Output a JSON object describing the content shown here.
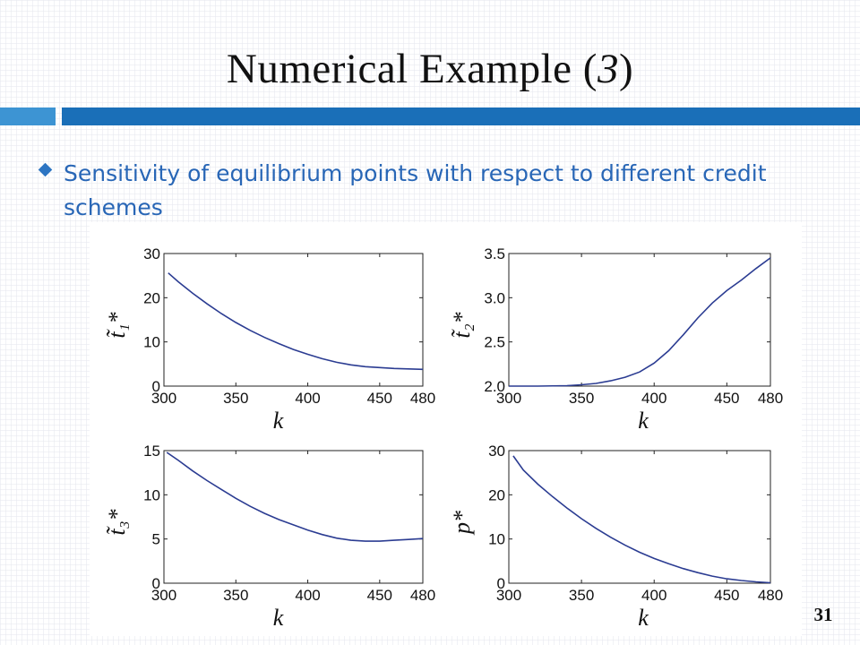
{
  "slide": {
    "title_main": "Numerical Example (",
    "title_num": "3",
    "title_close": ")",
    "bullet": "Sensitivity of equilibrium points with respect to different credit schemes",
    "page_number": "31"
  },
  "colors": {
    "accent_light": "#3d94d3",
    "accent_dark": "#1a6fb8",
    "bullet_text": "#2866b6",
    "line": "#2b3c92"
  },
  "chart_data": [
    {
      "type": "line",
      "xlabel": "k",
      "ylabel": "t̃₁*",
      "xlim": [
        300,
        480
      ],
      "xticks": [
        300,
        350,
        400,
        450,
        480
      ],
      "ylim": [
        0,
        30
      ],
      "yticks": [
        0,
        10,
        20,
        30
      ],
      "ytick_labels": [
        "0",
        "10",
        "20",
        "30"
      ],
      "x": [
        303,
        310,
        320,
        330,
        340,
        350,
        360,
        370,
        380,
        390,
        400,
        410,
        420,
        430,
        440,
        450,
        460,
        470,
        480
      ],
      "y": [
        25.6,
        23.6,
        21.0,
        18.6,
        16.4,
        14.4,
        12.6,
        11.0,
        9.6,
        8.3,
        7.2,
        6.2,
        5.4,
        4.8,
        4.4,
        4.2,
        4.0,
        3.9,
        3.8
      ]
    },
    {
      "type": "line",
      "xlabel": "k",
      "ylabel": "t̃₂*",
      "xlim": [
        300,
        480
      ],
      "xticks": [
        300,
        350,
        400,
        450,
        480
      ],
      "ylim": [
        2.0,
        3.5
      ],
      "yticks": [
        2.0,
        2.5,
        3.0,
        3.5
      ],
      "ytick_labels": [
        "2.0",
        "2.5",
        "3.0",
        "3.5"
      ],
      "x": [
        300,
        320,
        340,
        350,
        360,
        370,
        380,
        390,
        400,
        410,
        420,
        430,
        440,
        450,
        460,
        470,
        480
      ],
      "y": [
        2.0,
        2.0,
        2.005,
        2.015,
        2.03,
        2.06,
        2.1,
        2.16,
        2.26,
        2.4,
        2.58,
        2.77,
        2.94,
        3.08,
        3.2,
        3.33,
        3.45
      ]
    },
    {
      "type": "line",
      "xlabel": "k",
      "ylabel": "t̃₃*",
      "xlim": [
        300,
        480
      ],
      "xticks": [
        300,
        350,
        400,
        450,
        480
      ],
      "ylim": [
        0,
        15
      ],
      "yticks": [
        0,
        5,
        10,
        15
      ],
      "ytick_labels": [
        "0",
        "5",
        "10",
        "15"
      ],
      "x": [
        302,
        310,
        320,
        330,
        340,
        350,
        360,
        370,
        380,
        390,
        400,
        410,
        420,
        430,
        440,
        450,
        460,
        470,
        480
      ],
      "y": [
        14.8,
        13.9,
        12.7,
        11.6,
        10.6,
        9.6,
        8.7,
        7.9,
        7.2,
        6.6,
        6.0,
        5.5,
        5.1,
        4.85,
        4.75,
        4.75,
        4.85,
        4.95,
        5.05
      ]
    },
    {
      "type": "line",
      "xlabel": "k",
      "ylabel": "p*",
      "xlim": [
        300,
        480
      ],
      "xticks": [
        300,
        350,
        400,
        450,
        480
      ],
      "ylim": [
        0,
        30
      ],
      "yticks": [
        0,
        10,
        20,
        30
      ],
      "ytick_labels": [
        "0",
        "10",
        "20",
        "30"
      ],
      "x": [
        303,
        310,
        320,
        330,
        340,
        350,
        360,
        370,
        380,
        390,
        400,
        410,
        420,
        430,
        440,
        450,
        460,
        470,
        480
      ],
      "y": [
        28.8,
        25.6,
        22.4,
        19.6,
        17.0,
        14.6,
        12.4,
        10.4,
        8.6,
        7.0,
        5.6,
        4.4,
        3.3,
        2.4,
        1.6,
        1.0,
        0.6,
        0.3,
        0.1
      ]
    }
  ]
}
